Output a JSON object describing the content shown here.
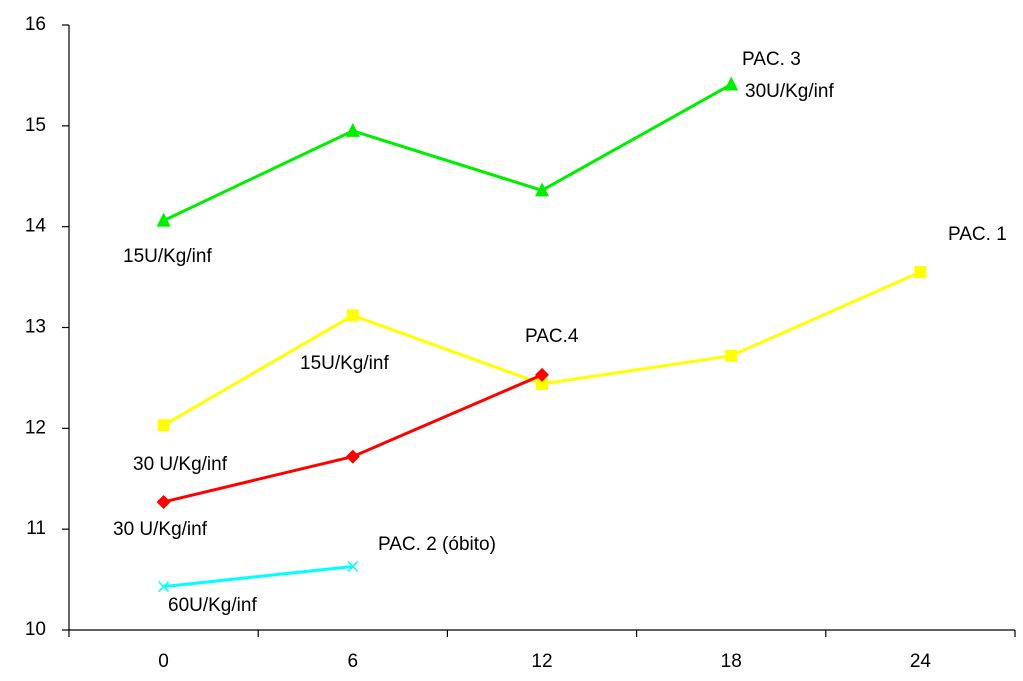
{
  "chart_data": {
    "type": "line",
    "categories": [
      "0",
      "6",
      "12",
      "18",
      "24"
    ],
    "ylim": [
      10,
      16
    ],
    "yticks": [
      10,
      11,
      12,
      13,
      14,
      15,
      16
    ],
    "grid": false,
    "series": [
      {
        "name": "PAC. 1",
        "color": "#ffff00",
        "marker": "square",
        "values": [
          12.03,
          13.12,
          12.44,
          12.72,
          13.55
        ]
      },
      {
        "name": "PAC. 2 (óbito)",
        "color": "#00ffff",
        "marker": "x",
        "values": [
          10.43,
          10.63,
          null,
          null,
          null
        ]
      },
      {
        "name": "PAC. 3",
        "color": "#00ee00",
        "marker": "triangle",
        "values": [
          14.06,
          14.95,
          14.36,
          15.41,
          null
        ]
      },
      {
        "name": "PAC.4",
        "color": "#ff0000",
        "marker": "diamond",
        "values": [
          11.27,
          11.72,
          12.53,
          null,
          null
        ]
      }
    ],
    "annotations": [
      "30U/Kg/inf",
      "15U/Kg/inf",
      "15U/Kg/inf",
      "30 U/Kg/inf",
      "30 U/Kg/inf",
      "60U/Kg/inf"
    ]
  }
}
